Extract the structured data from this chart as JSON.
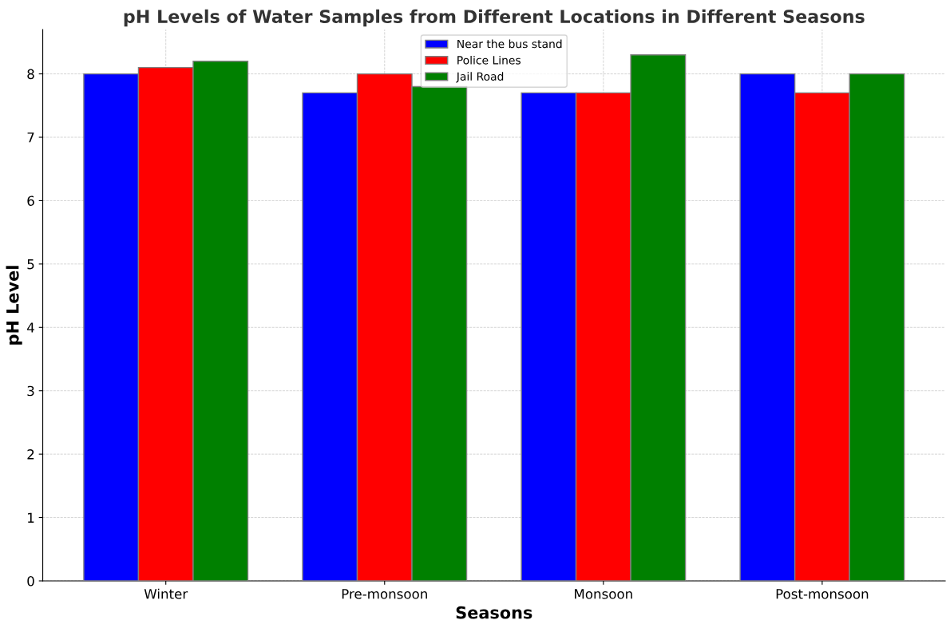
{
  "chart_data": {
    "type": "bar",
    "title": "pH Levels of Water Samples from Different Locations in Different Seasons",
    "xlabel": "Seasons",
    "ylabel": "pH Level",
    "categories": [
      "Winter",
      "Pre-monsoon",
      "Monsoon",
      "Post-monsoon"
    ],
    "series": [
      {
        "name": "Near the bus stand",
        "color": "#0000ff",
        "values": [
          8.0,
          7.7,
          7.7,
          8.0
        ]
      },
      {
        "name": "Police Lines",
        "color": "#ff0000",
        "values": [
          8.1,
          8.0,
          7.7,
          7.7
        ]
      },
      {
        "name": "Jail Road",
        "color": "#008000",
        "values": [
          8.2,
          7.8,
          8.3,
          8.0
        ]
      }
    ],
    "ylim": [
      0,
      8.7
    ],
    "yticks": [
      0,
      1,
      2,
      3,
      4,
      5,
      6,
      7,
      8
    ],
    "grid": true,
    "legend": "top"
  }
}
